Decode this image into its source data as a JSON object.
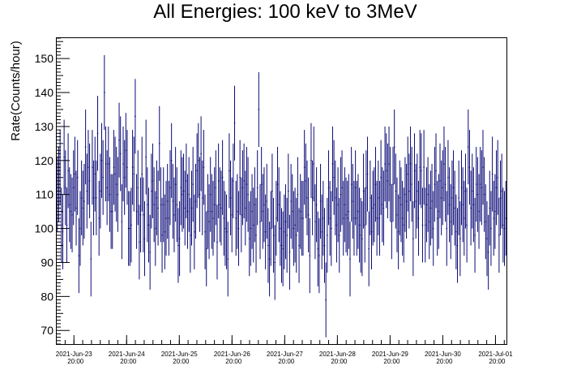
{
  "chart_data": {
    "type": "scatter",
    "title": "All Energies:  100 keV to 3MeV",
    "xlabel": "",
    "ylabel": "Rate(Counts/hour)",
    "ylim": [
      66,
      156
    ],
    "y_ticks": [
      70,
      80,
      90,
      100,
      110,
      120,
      130,
      140,
      150
    ],
    "x_ticks": [
      {
        "date": "2021-Jun-23",
        "time": "20:00"
      },
      {
        "date": "2021-Jun-24",
        "time": "20:00"
      },
      {
        "date": "2021-Jun-25",
        "time": "20:00"
      },
      {
        "date": "2021-Jun-26",
        "time": "20:00"
      },
      {
        "date": "2021-Jun-27",
        "time": "20:00"
      },
      {
        "date": "2021-Jun-28",
        "time": "20:00"
      },
      {
        "date": "2021-Jun-29",
        "time": "20:00"
      },
      {
        "date": "2021-Jun-30",
        "time": "20:00"
      },
      {
        "date": "2021-Jul-01",
        "time": "20:00"
      }
    ],
    "xlim": [
      "2021-Jun-23 12:10",
      "2021-Jul-02 01:00"
    ],
    "grid": false,
    "series_color": "#0a0a78",
    "series": [
      {
        "values": [
          110,
          113,
          118,
          101,
          99,
          121,
          112,
          101,
          117,
          107,
          105,
          104,
          112,
          116,
          106,
          115,
          92,
          100,
          109,
          106,
          108,
          124,
          111,
          118,
          114,
          91,
          118,
          109,
          116,
          109,
          128,
          103,
          111,
          120,
          115,
          140,
          119,
          112,
          119,
          110,
          105,
          105,
          118,
          116,
          113,
          110,
          126,
          122,
          102,
          119,
          115,
          123,
          118,
          100,
          100,
          101,
          118,
          116,
          133,
          105,
          112,
          96,
          104,
          116,
          104,
          97,
          121,
          107,
          101,
          93,
          111,
          114,
          107,
          100,
          109,
          106,
          125,
          107,
          98,
          107,
          99,
          103,
          108,
          103,
          112,
          120,
          108,
          104,
          113,
          107,
          95,
          97,
          112,
          110,
          111,
          106,
          114,
          105,
          110,
          98,
          106,
          113,
          99,
          108,
          117,
          120,
          110,
          122,
          109,
          118,
          99,
          94,
          105,
          102,
          110,
          105,
          103,
          107,
          112,
          96,
          114,
          107,
          106,
          115,
          103,
          100,
          99,
          91,
          117,
          109,
          104,
          114,
          131,
          103,
          105,
          100,
          115,
          104,
          112,
          114,
          106,
          113,
          110,
          97,
          100,
          105,
          101,
          107,
          98,
          112,
          135,
          102,
          113,
          105,
          107,
          99,
          108,
          95,
          91,
          100,
          111,
          98,
          90,
          103,
          113,
          107,
          100,
          95,
          94,
          99,
          102,
          98,
          111,
          93,
          108,
          105,
          100,
          101,
          98,
          110,
          95,
          105,
          103,
          103,
          118,
          114,
          109,
          104,
          92,
          120,
          109,
          119,
          102,
          107,
          94,
          92,
          108,
          99,
          103,
          95,
          79,
          98,
          112,
          103,
          100,
          119,
          115,
          109,
          101,
          107,
          98,
          110,
          112,
          103,
          107,
          104,
          103,
          105,
          91,
          113,
          108,
          103,
          112,
          103,
          105,
          101,
          98,
          97,
          111,
          101,
          112,
          116,
          94,
          109,
          99,
          106,
          107,
          113,
          103,
          109,
          103,
          115,
          107,
          106,
          119,
          117,
          114,
          119,
          113,
          102,
          113,
          124,
          111,
          104,
          99,
          109,
          107,
          103,
          101,
          110,
          108,
          116,
          111,
          119,
          113,
          97,
          117,
          108,
          111,
          103,
          118,
          117,
          101,
          118,
          101,
          107,
          110,
          102,
          106,
          108,
          100,
          113,
          117,
          103,
          105,
          114,
          109,
          112,
          119,
          113,
          100,
          115,
          107,
          102,
          109,
          112,
          106,
          99,
          95,
          109,
          97,
          112,
          107,
          103,
          111,
          101,
          124,
          118,
          106,
          111,
          107,
          98,
          113,
          110,
          105,
          113,
          112,
          118,
          110,
          102,
          97,
          93,
          106,
          100,
          116,
          103,
          105,
          112,
          115,
          98,
          109,
          111,
          101,
          100,
          103
        ],
        "errors": [
          11
        ]
      }
    ]
  }
}
